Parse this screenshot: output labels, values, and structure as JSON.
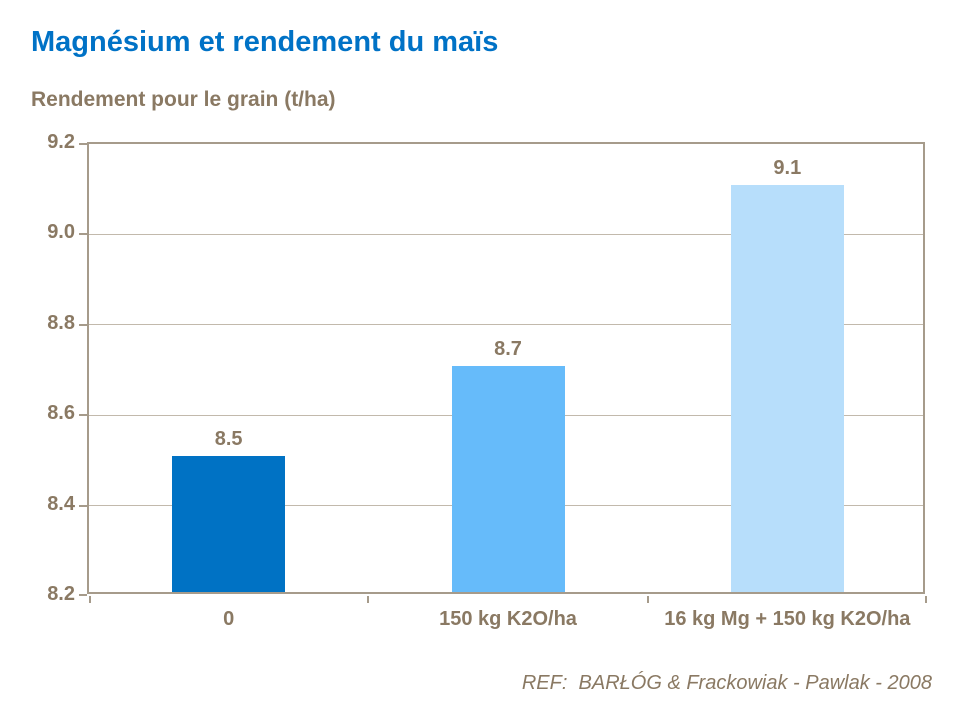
{
  "page": {
    "title": "Magnésium et rendement du maïs",
    "subtitle": "Rendement pour le grain (t/ha)",
    "footer": "REF:  BARŁÓG & Frackowiak - Pawlak - 2008"
  },
  "colors": {
    "title": "#0072C6",
    "text": "#8A7963",
    "plot_border": "#A69B8B",
    "gridline": "#C2B9AC",
    "bars": [
      "#0072C4",
      "#66BBFA",
      "#B7DEFB"
    ]
  },
  "chart_data": {
    "type": "bar",
    "title": "Magnésium et rendement du maïs",
    "ylabel": "Rendement pour le grain (t/ha)",
    "xlabel": "",
    "categories": [
      "0",
      "150 kg K2O/ha",
      "16 kg Mg + 150 kg K2O/ha"
    ],
    "values": [
      8.5,
      8.7,
      9.1
    ],
    "data_labels": [
      "8.5",
      "8.7",
      "9.1"
    ],
    "ylim": [
      8.2,
      9.2
    ],
    "yticks": [
      9.2,
      9.0,
      8.8,
      8.6,
      8.4,
      8.2
    ],
    "ytick_labels": [
      "9.2",
      "9.0",
      "8.8",
      "8.6",
      "8.4",
      "8.2"
    ],
    "grid": true,
    "legend_position": "none",
    "source": "REF:  BARŁÓG & Frackowiak - Pawlak - 2008"
  }
}
